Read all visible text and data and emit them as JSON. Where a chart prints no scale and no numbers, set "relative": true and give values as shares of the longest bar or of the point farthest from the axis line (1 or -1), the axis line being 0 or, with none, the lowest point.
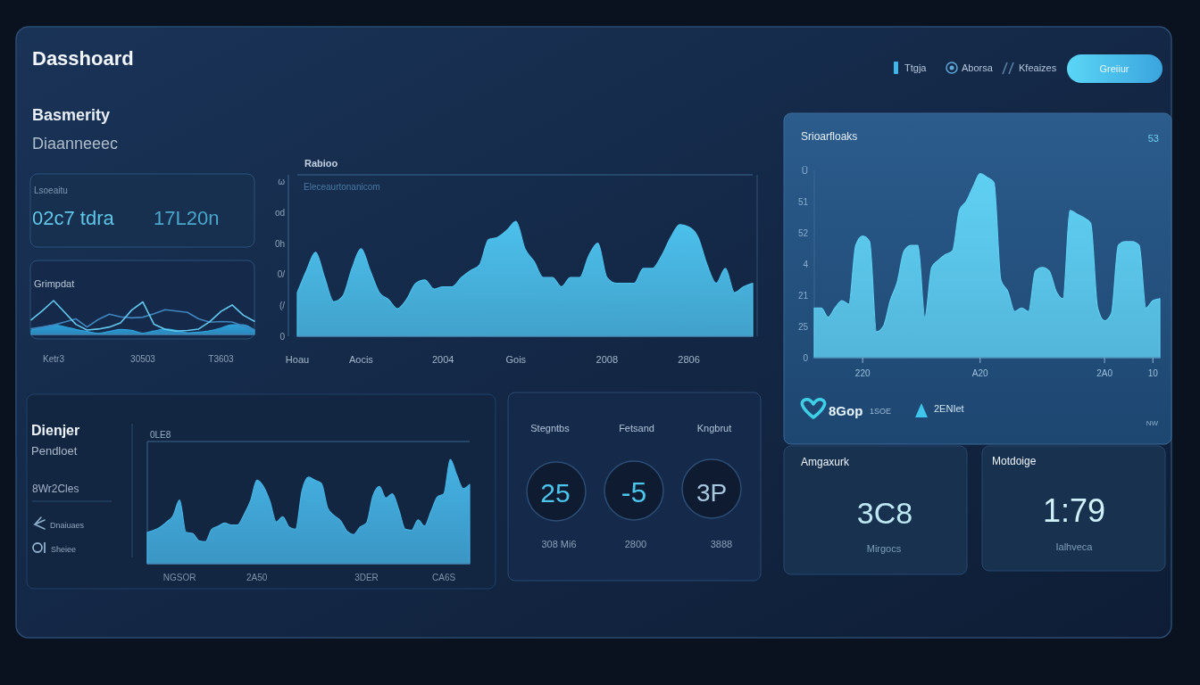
{
  "chart_data": [
    {
      "type": "other",
      "title": "Dasshoard",
      "annotations": [
        "Ttgja",
        "Aborsa",
        "Kfeaizes",
        "Greiiur",
        "Basmerity",
        "Diaanneeec",
        "Lsoeaitu",
        "02c7 tdra",
        "17L20n"
      ]
    },
    {
      "type": "line",
      "title": "Grimpdat",
      "relative": true,
      "tick_labels": "x",
      "categories": [
        null,
        null,
        "Ketr3",
        null,
        null,
        null,
        null,
        null,
        null,
        null,
        "30503",
        null,
        null,
        null,
        null,
        null,
        null,
        "T3603",
        null,
        null,
        null
      ],
      "series": [
        {
          "type": "area",
          "color": "#2e9fd8",
          "values": [
            0.13,
            0.21,
            0.28,
            0.23,
            0.15,
            0.09,
            0.04,
            0.09,
            0.15,
            0.12,
            0.04,
            0.1,
            0.16,
            0.12,
            0.05,
            0.07,
            0.11,
            0.19,
            0.29,
            0.29,
            0.13
          ]
        },
        {
          "color": "#3f86be",
          "values": [
            0.17,
            0.22,
            0.28,
            0.37,
            0.46,
            0.22,
            0.44,
            0.6,
            0.52,
            0.49,
            0.51,
            0.61,
            0.73,
            0.69,
            0.65,
            0.46,
            0.36,
            0.38,
            0.37,
            0.25,
            0.13
          ]
        },
        {
          "color": "#62c8ee",
          "values": [
            0.43,
            0.7,
            1,
            0.65,
            0.3,
            0.13,
            0.16,
            0.22,
            0.34,
            0.72,
            0.96,
            0.3,
            0.15,
            0.1,
            0.12,
            0.16,
            0.38,
            0.68,
            0.87,
            0.57,
            0.39
          ]
        }
      ]
    },
    {
      "type": "area",
      "title": "Rabioo",
      "subtitle": "Eleceaurtonanicom",
      "annotations": [
        "ω",
        "od",
        "0h",
        "0/",
        "(/",
        "0"
      ],
      "relative": true,
      "color": "#4cc0ec",
      "categories": [
        "Hoau",
        null,
        null,
        null,
        null,
        null,
        null,
        "Aocis",
        null,
        null,
        null,
        null,
        null,
        null,
        null,
        null,
        "2004",
        null,
        null,
        null,
        null,
        null,
        null,
        null,
        "Gois",
        null,
        null,
        null,
        null,
        null,
        null,
        null,
        null,
        null,
        "2008",
        null,
        null,
        null,
        null,
        null,
        null,
        null,
        null,
        "2806",
        null,
        null,
        null,
        null,
        null,
        null,
        null
      ],
      "values": [
        0.38,
        0.57,
        0.73,
        0.51,
        0.3,
        0.35,
        0.59,
        0.76,
        0.57,
        0.38,
        0.32,
        0.24,
        0.32,
        0.46,
        0.49,
        0.41,
        0.43,
        0.43,
        0.51,
        0.57,
        0.62,
        0.84,
        0.86,
        0.92,
        1,
        0.76,
        0.65,
        0.51,
        0.51,
        0.43,
        0.51,
        0.51,
        0.7,
        0.81,
        0.51,
        0.46,
        0.46,
        0.46,
        0.59,
        0.59,
        0.7,
        0.86,
        0.97,
        0.95,
        0.86,
        0.62,
        0.46,
        0.59,
        0.38,
        0.43,
        0.46
      ]
    },
    {
      "type": "area",
      "title": "Srioarfloaks",
      "annotations": [
        "53",
        "Ü",
        "51",
        "52",
        "4",
        "21",
        "25",
        "0",
        "8Gop",
        "1SOE",
        "2ENIet",
        "NW"
      ],
      "relative": true,
      "color": "#5fd0f2",
      "categories": [
        null,
        null,
        null,
        null,
        null,
        null,
        null,
        "220",
        null,
        null,
        null,
        null,
        null,
        null,
        null,
        null,
        null,
        null,
        null,
        null,
        null,
        null,
        null,
        null,
        "A20",
        null,
        null,
        null,
        null,
        null,
        null,
        null,
        null,
        null,
        null,
        null,
        null,
        null,
        null,
        null,
        null,
        null,
        "2A0",
        null,
        null,
        null,
        null,
        null,
        null,
        "10",
        null
      ],
      "values": [
        0.27,
        0.27,
        0.22,
        0.27,
        0.31,
        0.29,
        0.61,
        0.66,
        0.63,
        0.14,
        0.17,
        0.31,
        0.41,
        0.58,
        0.61,
        0.61,
        0.22,
        0.49,
        0.53,
        0.56,
        0.58,
        0.8,
        0.85,
        0.93,
        1,
        0.98,
        0.95,
        0.42,
        0.36,
        0.25,
        0.27,
        0.25,
        0.47,
        0.49,
        0.47,
        0.36,
        0.32,
        0.8,
        0.78,
        0.76,
        0.73,
        0.27,
        0.2,
        0.24,
        0.61,
        0.63,
        0.63,
        0.61,
        0.27,
        0.31,
        0.32
      ]
    },
    {
      "type": "area",
      "title": "Dienjer",
      "annotations": [
        "0LE8",
        "Pendloet",
        "8Wr2Cles",
        "Dnaiuaes",
        "Sheiee"
      ],
      "relative": true,
      "tick_labels": "x",
      "color": "#45b2e4",
      "categories": [
        null,
        null,
        null,
        null,
        null,
        "NGSOR",
        null,
        null,
        null,
        null,
        null,
        null,
        null,
        null,
        null,
        null,
        null,
        "2A50",
        null,
        null,
        null,
        null,
        null,
        null,
        null,
        null,
        null,
        null,
        null,
        null,
        null,
        null,
        null,
        null,
        "3DER",
        null,
        null,
        null,
        null,
        null,
        null,
        null,
        null,
        null,
        null,
        null,
        "CA6S",
        null,
        null,
        null,
        null
      ],
      "values": [
        0.3,
        0.32,
        0.35,
        0.4,
        0.46,
        0.61,
        0.3,
        0.29,
        0.22,
        0.21,
        0.33,
        0.36,
        0.39,
        0.37,
        0.37,
        0.47,
        0.6,
        0.8,
        0.74,
        0.6,
        0.4,
        0.45,
        0.35,
        0.33,
        0.7,
        0.83,
        0.8,
        0.77,
        0.53,
        0.46,
        0.41,
        0.31,
        0.28,
        0.35,
        0.39,
        0.65,
        0.74,
        0.63,
        0.67,
        0.52,
        0.33,
        0.32,
        0.42,
        0.36,
        0.5,
        0.64,
        0.67,
        1,
        0.85,
        0.72,
        0.76
      ]
    },
    {
      "type": "other",
      "annotations": [
        "Stegntbs",
        "Fetsand",
        "Kngbrut",
        "25",
        "-5",
        "3P",
        "308 Mi6",
        "2800",
        "3888"
      ]
    },
    {
      "type": "other",
      "annotations": [
        "Amgaxurk",
        "3C8",
        "Mirgocs",
        "Motdoige",
        "1:79",
        "Ialhveca"
      ]
    }
  ]
}
